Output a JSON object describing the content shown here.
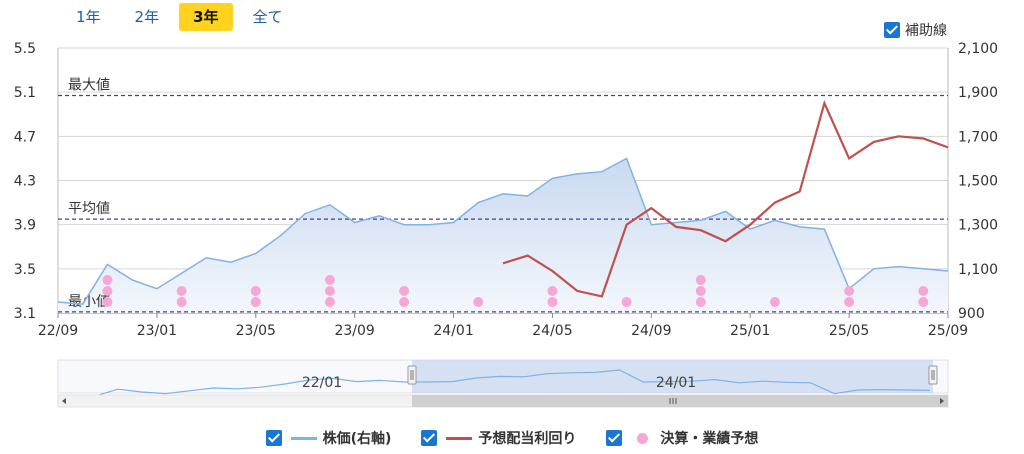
{
  "tabs": [
    {
      "label": "1年",
      "active": false
    },
    {
      "label": "2年",
      "active": false
    },
    {
      "label": "3年",
      "active": true
    },
    {
      "label": "全て",
      "active": false
    }
  ],
  "aux_lines_label": "補助線",
  "legend": [
    {
      "label": "株価(右軸)",
      "kind": "line",
      "color": "#7fb2e5"
    },
    {
      "label": "予想配当利回り",
      "kind": "line",
      "color": "#c0504d"
    },
    {
      "label": "決算・業績予想",
      "kind": "dot",
      "color": "#f7a6d6"
    }
  ],
  "navigator": {
    "labels": [
      "22/01",
      "24/01"
    ]
  },
  "chart_data": {
    "type": "line",
    "x_ticks": [
      "22/09",
      "23/01",
      "23/05",
      "23/09",
      "24/01",
      "24/05",
      "24/09",
      "25/01",
      "25/05",
      "25/09"
    ],
    "y_left": {
      "ticks": [
        "3.1",
        "3.5",
        "3.9",
        "4.3",
        "4.7",
        "5.1",
        "5.5"
      ],
      "range": [
        3.1,
        5.5
      ]
    },
    "y_right": {
      "ticks": [
        "900",
        "1,100",
        "1,300",
        "1,500",
        "1,700",
        "1,900",
        "2,100"
      ],
      "range": [
        900,
        2100
      ]
    },
    "ref_lines": [
      {
        "label": "最大値",
        "value": 5.07
      },
      {
        "label": "平均値",
        "value": 3.95
      },
      {
        "label": "最小値",
        "value": 3.11
      }
    ],
    "series": [
      {
        "name": "株価(右軸)",
        "axis": "right",
        "color": "#7fb2e5",
        "x": [
          "22/09",
          "22/10",
          "22/11",
          "22/12",
          "23/01",
          "23/02",
          "23/03",
          "23/04",
          "23/05",
          "23/06",
          "23/07",
          "23/08",
          "23/09",
          "23/10",
          "23/11",
          "23/12",
          "24/01",
          "24/02",
          "24/03",
          "24/04",
          "24/05",
          "24/06",
          "24/07",
          "24/08",
          "24/09",
          "24/10",
          "24/11",
          "24/12",
          "25/01",
          "25/02",
          "25/03",
          "25/04",
          "25/05",
          "25/06",
          "25/07",
          "25/08",
          "25/09"
        ],
        "values": [
          950,
          940,
          1120,
          1050,
          1010,
          1080,
          1150,
          1130,
          1170,
          1250,
          1350,
          1390,
          1310,
          1340,
          1300,
          1300,
          1310,
          1400,
          1440,
          1430,
          1510,
          1530,
          1540,
          1600,
          1300,
          1310,
          1320,
          1360,
          1280,
          1320,
          1290,
          1280,
          1010,
          1100,
          1110,
          1100,
          1090
        ]
      },
      {
        "name": "予想配当利回り",
        "axis": "left",
        "color": "#c0504d",
        "x": [
          "24/03",
          "24/04",
          "24/05",
          "24/06",
          "24/07",
          "24/08",
          "24/09",
          "24/10",
          "24/11",
          "24/12",
          "25/01",
          "25/02",
          "25/03",
          "25/04",
          "25/05",
          "25/06",
          "25/07",
          "25/08",
          "25/09"
        ],
        "values": [
          3.55,
          3.62,
          3.48,
          3.3,
          3.25,
          3.9,
          4.05,
          3.88,
          3.85,
          3.75,
          3.9,
          4.1,
          4.2,
          5.0,
          4.5,
          4.65,
          4.7,
          4.68,
          4.6
        ]
      },
      {
        "name": "決算・業績予想",
        "axis": "left",
        "color": "#f7a6d6",
        "events": [
          {
            "x": "22/11",
            "count": 3
          },
          {
            "x": "23/02",
            "count": 2
          },
          {
            "x": "23/05",
            "count": 2
          },
          {
            "x": "23/08",
            "count": 3
          },
          {
            "x": "23/11",
            "count": 2
          },
          {
            "x": "24/02",
            "count": 1
          },
          {
            "x": "24/05",
            "count": 2
          },
          {
            "x": "24/08",
            "count": 1
          },
          {
            "x": "24/11",
            "count": 3
          },
          {
            "x": "25/02",
            "count": 1
          },
          {
            "x": "25/05",
            "count": 2
          },
          {
            "x": "25/08",
            "count": 2
          }
        ]
      }
    ]
  }
}
